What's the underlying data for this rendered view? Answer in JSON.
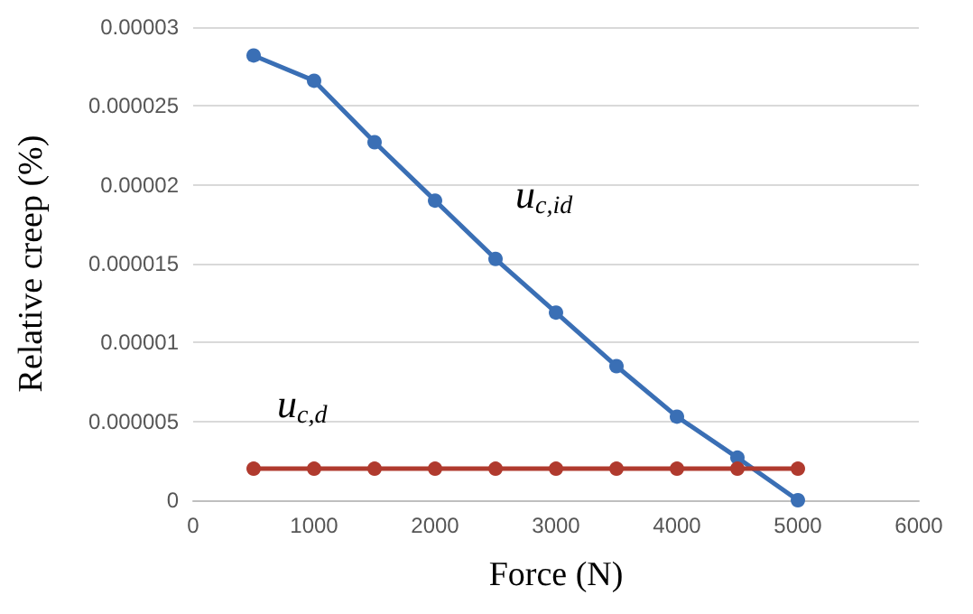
{
  "chart_data": {
    "type": "line",
    "xlabel": "Force (N)",
    "ylabel": "Relative creep (%)",
    "x": [
      500,
      1000,
      1500,
      2000,
      2500,
      3000,
      3500,
      4000,
      4500,
      5000
    ],
    "series": [
      {
        "name": "u$_{c,id}$",
        "color": "#3a6fb5",
        "values": [
          2.82e-05,
          2.66e-05,
          2.27e-05,
          1.9e-05,
          1.53e-05,
          1.19e-05,
          8.5e-06,
          5.3e-06,
          2.7e-06,
          0
        ]
      },
      {
        "name": "u$_{c,d}$",
        "color": "#b03a2e",
        "values": [
          2e-06,
          2e-06,
          2e-06,
          2e-06,
          2e-06,
          2e-06,
          2e-06,
          2e-06,
          2e-06,
          2e-06
        ]
      }
    ],
    "xlim": [
      0,
      6000
    ],
    "xticks": [
      0,
      1000,
      2000,
      3000,
      4000,
      5000,
      6000
    ],
    "ylim": [
      0,
      3e-05
    ],
    "yticks": [
      0,
      {
        "value": 5e-06,
        "label": "0.000005"
      },
      {
        "value": 1e-05,
        "label": "0.00001"
      },
      {
        "value": 1.5e-05,
        "label": "0.000015"
      },
      {
        "value": 2e-05,
        "label": "0.00002"
      },
      {
        "value": 2.5e-05,
        "label": "0.000025"
      },
      {
        "value": 3e-05,
        "label": "0.00003"
      }
    ],
    "grid": "y",
    "legend": false,
    "marker": "circle",
    "line_style": "solid"
  }
}
